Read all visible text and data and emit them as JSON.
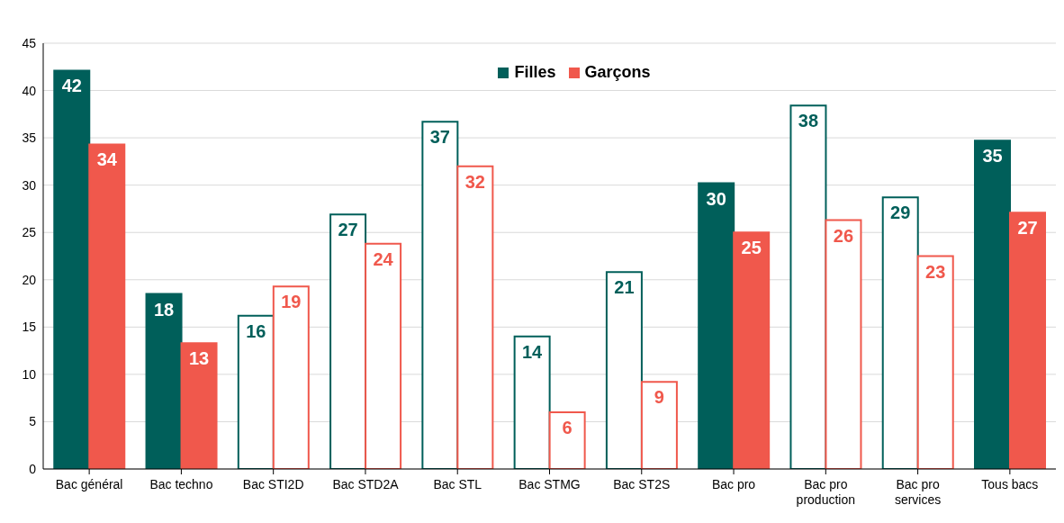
{
  "chart_data": {
    "type": "bar",
    "categories": [
      "Bac général",
      "Bac techno",
      "Bac STI2D",
      "Bac STD2A",
      "Bac STL",
      "Bac STMG",
      "Bac ST2S",
      "Bac pro",
      "Bac pro production",
      "Bac pro services",
      "Tous bacs"
    ],
    "series": [
      {
        "name": "Filles",
        "color": "#005f5a",
        "values": [
          42.1,
          18.5,
          16.2,
          26.9,
          36.7,
          14.0,
          20.8,
          30.2,
          38.4,
          28.7,
          34.7
        ],
        "value_labels": [
          "42",
          "18",
          "16",
          "27",
          "37",
          "14",
          "21",
          "30",
          "38",
          "29",
          "35"
        ],
        "colors": [
          "#005f5a",
          "#005f5a",
          "#ffffff",
          "#ffffff",
          "#ffffff",
          "#ffffff",
          "#ffffff",
          "#005f5a",
          "#ffffff",
          "#ffffff",
          "#005f5a"
        ]
      },
      {
        "name": "Garçons",
        "color": "#f0584c",
        "values": [
          34.3,
          13.3,
          19.3,
          23.8,
          32.0,
          6.0,
          9.2,
          25.0,
          26.3,
          22.5,
          27.1
        ],
        "value_labels": [
          "34",
          "13",
          "19",
          "24",
          "32",
          "6",
          "9",
          "25",
          "26",
          "23",
          "27"
        ],
        "colors": [
          "#f0584c",
          "#f0584c",
          "#ffffff",
          "#ffffff",
          "#ffffff",
          "#ffffff",
          "#ffffff",
          "#f0584c",
          "#ffffff",
          "#ffffff",
          "#f0584c"
        ]
      }
    ],
    "ylim": [
      0,
      45
    ],
    "yticks": [
      0,
      5,
      10,
      15,
      20,
      25,
      30,
      35,
      40,
      45
    ],
    "grid": "y",
    "legend": "top"
  }
}
